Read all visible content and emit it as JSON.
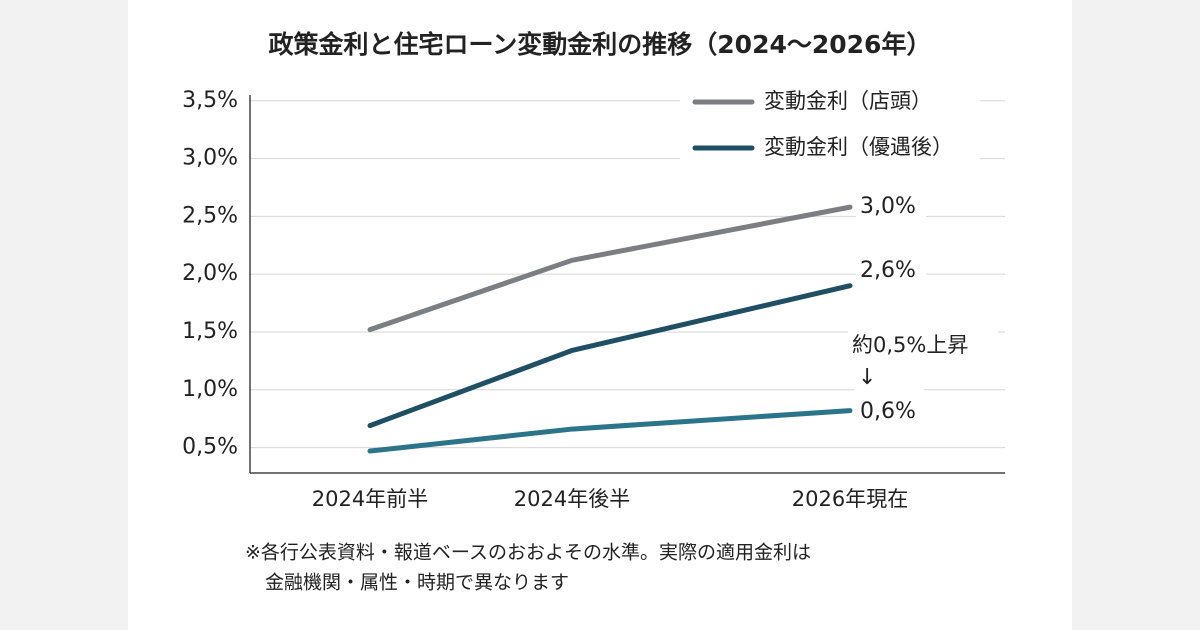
{
  "chart_data": {
    "type": "line",
    "title": "政策金利と住宅ローン変動金利の推移（2024〜2026年）",
    "categories": [
      "2024年前半",
      "2024年後半",
      "2026年現在"
    ],
    "series": [
      {
        "name": "変動金利（店頭）",
        "color": "#7b7e82",
        "values": [
          1.52,
          2.12,
          2.58
        ]
      },
      {
        "name": "変動金利（優遇後）",
        "color": "#1f4f63",
        "values": [
          0.69,
          1.34,
          1.9
        ]
      },
      {
        "color": "#2b7489",
        "values": [
          0.47,
          0.66,
          0.82
        ]
      }
    ],
    "ylim": [
      0.28,
      3.55
    ],
    "yticks": [
      {
        "value": 0.5,
        "label": "0,5%"
      },
      {
        "value": 1.0,
        "label": "1,0%"
      },
      {
        "value": 1.5,
        "label": "1,5%"
      },
      {
        "value": 2.0,
        "label": "2,0%"
      },
      {
        "value": 2.5,
        "label": "2,5%"
      },
      {
        "value": 3.0,
        "label": "3,0%"
      },
      {
        "value": 3.5,
        "label": "3,5%"
      }
    ],
    "grid": true,
    "legend": "top-right",
    "annotations": [
      "3,0%",
      "2,6%",
      "約0,5%上昇",
      "↓",
      "0,6%"
    ],
    "footnote": [
      "※各行公表資料・報道ベースのおおよその水準。実際の適用金利は",
      "金融機関・属性・時期で異なります"
    ]
  }
}
